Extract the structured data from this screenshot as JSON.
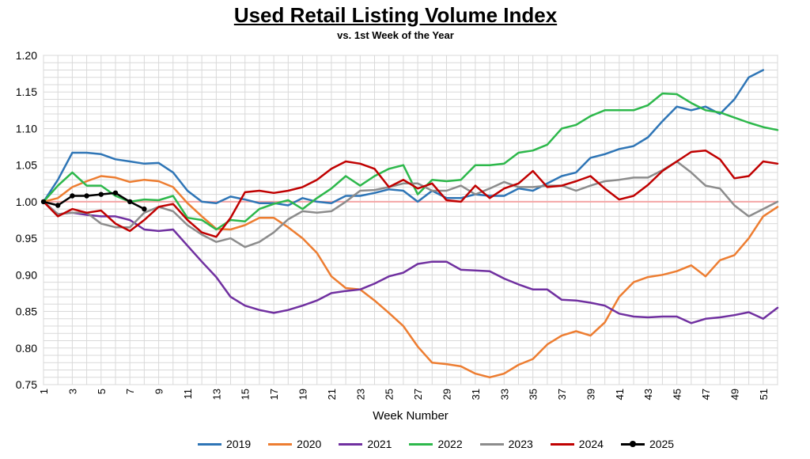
{
  "chart_data": {
    "type": "line",
    "title": "Used Retail Listing Volume Index",
    "subtitle": "vs. 1st Week of the Year",
    "xlabel": "Week Number",
    "ylabel": "",
    "xlim": [
      1,
      52
    ],
    "ylim": [
      0.75,
      1.2
    ],
    "y_ticks": [
      "0.75",
      "0.80",
      "0.85",
      "0.90",
      "0.95",
      "1.00",
      "1.05",
      "1.10",
      "1.15",
      "1.20"
    ],
    "x_ticks": [
      1,
      3,
      5,
      7,
      9,
      11,
      13,
      15,
      17,
      19,
      21,
      23,
      25,
      27,
      29,
      31,
      33,
      35,
      37,
      39,
      41,
      43,
      45,
      47,
      49,
      51
    ],
    "reference_line": 1.0,
    "reference_color": "#f4a6a6",
    "grid": true,
    "legend_position": "bottom",
    "series": [
      {
        "name": "2019",
        "color": "#2e75b6",
        "markers": false,
        "values": [
          1.0,
          1.03,
          1.067,
          1.067,
          1.065,
          1.058,
          1.055,
          1.052,
          1.053,
          1.04,
          1.015,
          1.0,
          0.998,
          1.007,
          1.003,
          0.998,
          0.998,
          0.995,
          1.005,
          1.0,
          0.998,
          1.008,
          1.008,
          1.012,
          1.017,
          1.015,
          1.0,
          1.015,
          1.005,
          1.005,
          1.01,
          1.008,
          1.008,
          1.018,
          1.015,
          1.025,
          1.035,
          1.04,
          1.06,
          1.065,
          1.072,
          1.076,
          1.088,
          1.11,
          1.13,
          1.125,
          1.13,
          1.12,
          1.14,
          1.17,
          1.18
        ]
      },
      {
        "name": "2020",
        "color": "#ed7d31",
        "markers": false,
        "values": [
          1.0,
          1.005,
          1.02,
          1.028,
          1.035,
          1.033,
          1.027,
          1.03,
          1.028,
          1.02,
          0.998,
          0.98,
          0.963,
          0.962,
          0.968,
          0.978,
          0.978,
          0.965,
          0.95,
          0.93,
          0.898,
          0.882,
          0.88,
          0.865,
          0.848,
          0.83,
          0.802,
          0.78,
          0.778,
          0.775,
          0.765,
          0.76,
          0.765,
          0.777,
          0.785,
          0.805,
          0.817,
          0.823,
          0.817,
          0.835,
          0.87,
          0.89,
          0.897,
          0.9,
          0.905,
          0.913,
          0.898,
          0.92,
          0.927,
          0.95,
          0.98,
          0.993
        ]
      },
      {
        "name": "2021",
        "color": "#7030a0",
        "markers": false,
        "values": [
          1.0,
          0.983,
          0.985,
          0.982,
          0.98,
          0.98,
          0.975,
          0.962,
          0.96,
          0.962,
          0.94,
          0.918,
          0.897,
          0.87,
          0.858,
          0.852,
          0.848,
          0.852,
          0.858,
          0.865,
          0.875,
          0.878,
          0.88,
          0.888,
          0.898,
          0.903,
          0.915,
          0.918,
          0.918,
          0.907,
          0.906,
          0.905,
          0.895,
          0.887,
          0.88,
          0.88,
          0.866,
          0.865,
          0.862,
          0.858,
          0.847,
          0.843,
          0.842,
          0.843,
          0.843,
          0.834,
          0.84,
          0.842,
          0.845,
          0.849,
          0.84,
          0.855
        ]
      },
      {
        "name": "2022",
        "color": "#2db84b",
        "markers": false,
        "values": [
          1.0,
          1.022,
          1.04,
          1.022,
          1.022,
          1.008,
          1.0,
          1.003,
          1.002,
          1.008,
          0.978,
          0.975,
          0.962,
          0.975,
          0.973,
          0.99,
          0.997,
          1.002,
          0.99,
          1.005,
          1.018,
          1.035,
          1.022,
          1.035,
          1.045,
          1.05,
          1.01,
          1.03,
          1.028,
          1.03,
          1.05,
          1.05,
          1.052,
          1.067,
          1.07,
          1.078,
          1.1,
          1.105,
          1.117,
          1.125,
          1.125,
          1.125,
          1.132,
          1.148,
          1.147,
          1.135,
          1.125,
          1.122,
          1.115,
          1.108,
          1.102,
          1.098
        ]
      },
      {
        "name": "2023",
        "color": "#8c8c8c",
        "markers": false,
        "values": [
          1.0,
          0.983,
          0.985,
          0.985,
          0.97,
          0.965,
          0.965,
          0.985,
          0.993,
          0.987,
          0.968,
          0.955,
          0.945,
          0.95,
          0.938,
          0.945,
          0.958,
          0.976,
          0.987,
          0.985,
          0.987,
          1.0,
          1.015,
          1.016,
          1.02,
          1.025,
          1.025,
          1.015,
          1.015,
          1.022,
          1.01,
          1.018,
          1.027,
          1.02,
          1.02,
          1.022,
          1.022,
          1.015,
          1.022,
          1.028,
          1.03,
          1.033,
          1.033,
          1.043,
          1.055,
          1.04,
          1.022,
          1.018,
          0.995,
          0.98,
          0.99,
          1.0
        ]
      },
      {
        "name": "2024",
        "color": "#c00000",
        "markers": false,
        "values": [
          1.0,
          0.98,
          0.99,
          0.985,
          0.988,
          0.97,
          0.96,
          0.975,
          0.993,
          0.997,
          0.975,
          0.958,
          0.952,
          0.978,
          1.013,
          1.015,
          1.012,
          1.015,
          1.02,
          1.03,
          1.045,
          1.055,
          1.052,
          1.045,
          1.02,
          1.03,
          1.018,
          1.025,
          1.002,
          1.0,
          1.022,
          1.005,
          1.018,
          1.025,
          1.042,
          1.02,
          1.022,
          1.028,
          1.035,
          1.018,
          1.003,
          1.008,
          1.023,
          1.042,
          1.055,
          1.068,
          1.07,
          1.058,
          1.032,
          1.035,
          1.055,
          1.052
        ]
      },
      {
        "name": "2025",
        "color": "#000000",
        "markers": true,
        "values": [
          1.0,
          0.995,
          1.008,
          1.008,
          1.01,
          1.012,
          1.0,
          0.99
        ]
      }
    ]
  }
}
